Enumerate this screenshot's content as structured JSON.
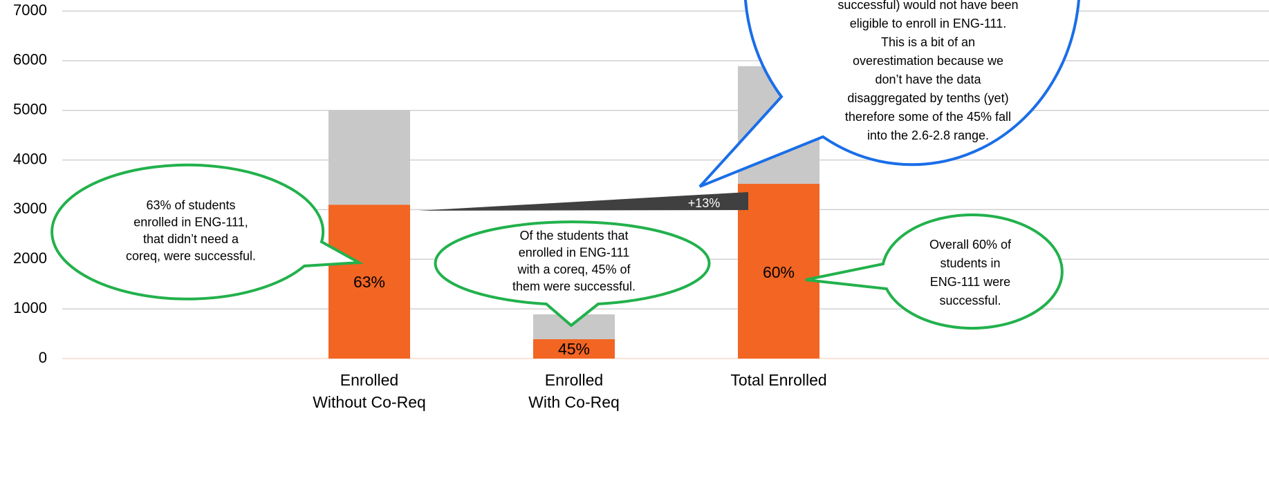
{
  "chart_data": {
    "type": "stacked_bar",
    "categories": [
      "Enrolled Without Co-Req",
      "Enrolled With Co-Req",
      "Total Enrolled"
    ],
    "series": [
      {
        "color": "#f26522",
        "values": [
          3100,
          390,
          3520
        ]
      },
      {
        "color": "#c8c8c8",
        "values": [
          1900,
          500,
          2370
        ]
      }
    ],
    "bar_labels": [
      "63%",
      "45%",
      "60%"
    ],
    "ylim": [
      0,
      7000
    ],
    "yticks": [
      0,
      1000,
      2000,
      3000,
      4000,
      5000,
      6000,
      7000
    ],
    "grid": true,
    "annotations": {
      "blue_callout": [
        "successful) would not have been",
        "eligible to enroll in ENG-111.",
        "This is a bit of an",
        "overestimation because we",
        "don’t have the data",
        "disaggregated by tenths (yet)",
        "therefore some of the 45% fall",
        "into the 2.6-2.8 range."
      ],
      "left_callout": [
        "63% of students",
        "enrolled in ENG-111,",
        "that didn’t need a",
        "coreq, were successful."
      ],
      "middle_callout": [
        "Of the students that",
        "enrolled in ENG-111",
        "with a coreq, 45% of",
        "them were successful."
      ],
      "right_callout": [
        "Overall 60% of",
        "students in",
        "ENG-111 were",
        "successful."
      ],
      "difference": "+13%"
    }
  }
}
